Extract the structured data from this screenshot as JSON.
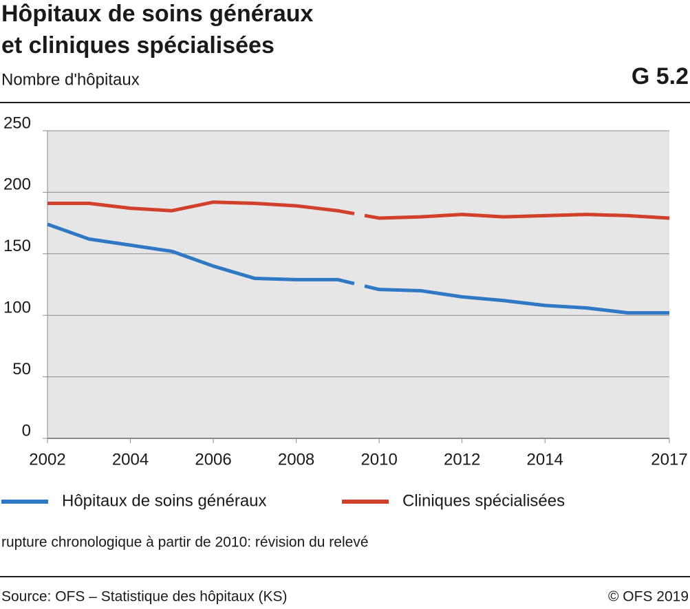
{
  "chart_data": {
    "type": "line",
    "title": [
      "Hôpitaux de soins généraux",
      "et cliniques spécialisées"
    ],
    "subtitle": "Nombre d'hôpitaux",
    "chart_id": "G 5.2",
    "x": [
      2002,
      2003,
      2004,
      2005,
      2006,
      2007,
      2008,
      2009,
      2010,
      2011,
      2012,
      2013,
      2014,
      2015,
      2016,
      2017
    ],
    "series": [
      {
        "name": "Hôpitaux de soins généraux",
        "color": "#2f78c4",
        "values": [
          174,
          162,
          157,
          152,
          140,
          130,
          129,
          129,
          121,
          120,
          115,
          112,
          108,
          106,
          102,
          102
        ]
      },
      {
        "name": "Cliniques spécialisées",
        "color": "#d0402a",
        "values": [
          191,
          191,
          187,
          185,
          192,
          191,
          189,
          185,
          179,
          180,
          182,
          180,
          181,
          182,
          181,
          179
        ]
      }
    ],
    "xlim": [
      2002,
      2017
    ],
    "xticks": [
      2002,
      2004,
      2006,
      2008,
      2010,
      2012,
      2014,
      2017
    ],
    "ylim": [
      0,
      250
    ],
    "yticks": [
      0,
      50,
      100,
      150,
      200,
      250
    ],
    "grid": true,
    "break_at": 2010,
    "note": "rupture chronologique à partir de 2010: révision du relevé"
  },
  "footer": {
    "source": "Source: OFS – Statistique des hôpitaux (KS)",
    "copyright": "© OFS 2019"
  }
}
